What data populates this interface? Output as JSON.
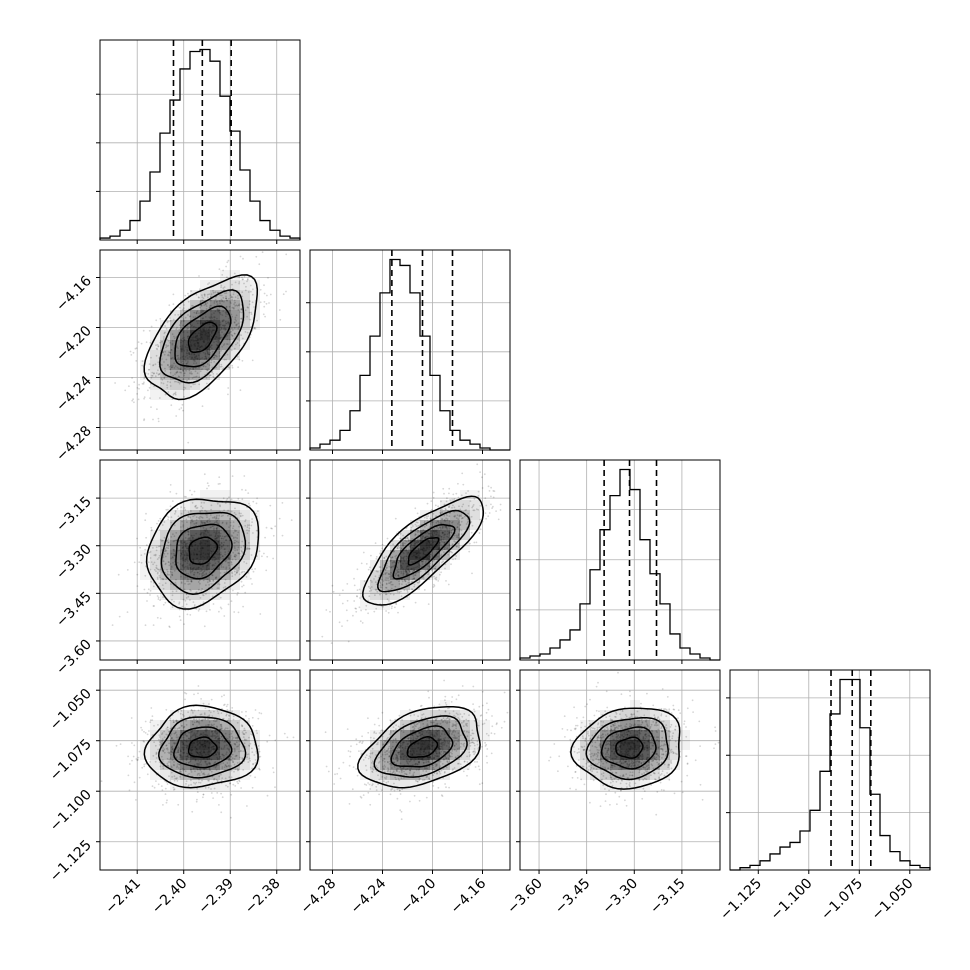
{
  "chart_data": {
    "type": "corner",
    "parameters": 4,
    "colors": {
      "ink": "#000000",
      "grid": "#b0b0b0",
      "frame": "#000000",
      "scatter": "#000000",
      "background": "#ffffff"
    },
    "grid": true,
    "axes": [
      {
        "range": [
          -2.418,
          -2.375
        ],
        "ticks": [
          -2.41,
          -2.4,
          -2.39,
          -2.38
        ],
        "tick_labels": [
          "−2.41",
          "−2.40",
          "−2.39",
          "−2.38"
        ]
      },
      {
        "range": [
          -4.298,
          -4.138
        ],
        "ticks": [
          -4.28,
          -4.24,
          -4.2,
          -4.16
        ],
        "tick_labels": [
          "−4.28",
          "−4.24",
          "−4.20",
          "−4.16"
        ]
      },
      {
        "range": [
          -3.66,
          -3.03
        ],
        "ticks": [
          -3.6,
          -3.45,
          -3.3,
          -3.15
        ],
        "tick_labels": [
          "−3.60",
          "−3.45",
          "−3.30",
          "−3.15"
        ]
      },
      {
        "range": [
          -1.139,
          -1.04
        ],
        "ticks": [
          -1.125,
          -1.1,
          -1.075,
          -1.05
        ],
        "tick_labels": [
          "−1.125",
          "−1.100",
          "−1.075",
          "−1.050"
        ]
      }
    ],
    "histograms": [
      {
        "param": 0,
        "quantiles": [
          -2.4022,
          -2.396,
          -2.3898
        ],
        "counts": [
          1,
          2,
          5,
          10,
          20,
          35,
          55,
          72,
          88,
          97,
          98,
          92,
          74,
          56,
          36,
          20,
          10,
          5,
          2,
          1
        ]
      },
      {
        "param": 1,
        "quantiles": [
          -4.2325,
          -4.208,
          -4.184
        ],
        "counts": [
          1,
          3,
          5,
          10,
          20,
          38,
          58,
          80,
          97,
          94,
          80,
          58,
          38,
          20,
          10,
          5,
          3,
          1,
          0,
          0
        ]
      },
      {
        "param": 2,
        "quantiles": [
          -3.395,
          -3.315,
          -3.23
        ],
        "counts": [
          1,
          2,
          3,
          6,
          10,
          15,
          28,
          45,
          65,
          82,
          95,
          85,
          60,
          43,
          28,
          13,
          6,
          3,
          1,
          0
        ]
      },
      {
        "param": 3,
        "quantiles": [
          -1.089,
          -1.0785,
          -1.0693
        ],
        "counts": [
          0,
          1,
          2,
          4,
          7,
          10,
          12,
          17,
          26,
          43,
          68,
          83,
          83,
          62,
          33,
          15,
          8,
          4,
          2,
          1
        ]
      }
    ],
    "pairs": [
      {
        "x": 0,
        "y": 1,
        "mean": [
          -2.396,
          -4.208
        ],
        "sd": [
          0.006,
          0.024
        ],
        "corr": 0.55
      },
      {
        "x": 0,
        "y": 2,
        "mean": [
          -2.396,
          -3.315
        ],
        "sd": [
          0.006,
          0.085
        ],
        "corr": 0.22
      },
      {
        "x": 1,
        "y": 2,
        "mean": [
          -4.208,
          -3.315
        ],
        "sd": [
          0.024,
          0.085
        ],
        "corr": 0.78
      },
      {
        "x": 0,
        "y": 3,
        "mean": [
          -2.396,
          -1.0785
        ],
        "sd": [
          0.006,
          0.01
        ],
        "corr": 0.05
      },
      {
        "x": 1,
        "y": 3,
        "mean": [
          -4.208,
          -1.0785
        ],
        "sd": [
          0.024,
          0.01
        ],
        "corr": 0.38
      },
      {
        "x": 2,
        "y": 3,
        "mean": [
          -3.315,
          -1.0785
        ],
        "sd": [
          0.085,
          0.01
        ],
        "corr": 0.1
      }
    ],
    "contour_levels_sigma": [
      0.5,
      1.0,
      1.5,
      2.0
    ],
    "xlabel": "",
    "ylabel": "",
    "title": ""
  }
}
